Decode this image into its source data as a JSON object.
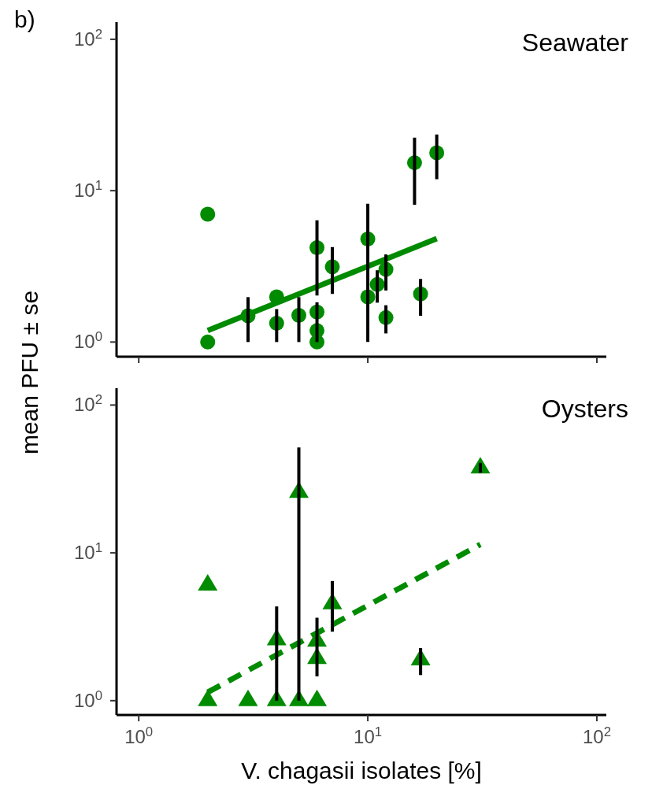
{
  "chart_data": [
    {
      "type": "scatter",
      "title": "Seawater",
      "annotations": [
        "b)"
      ],
      "ylabel": "mean PFU ± se",
      "log": "xy",
      "tick_labels": "y",
      "xlim": [
        0.8,
        110
      ],
      "ylim": [
        0.8,
        130
      ],
      "xticks": [
        {
          "value": 1,
          "label": null
        },
        {
          "value": 10,
          "label": null
        },
        {
          "value": 100,
          "label": null
        }
      ],
      "yticks": [
        {
          "value": 1,
          "label": "10$^{0}$"
        },
        {
          "value": 10,
          "label": "10$^{1}$"
        },
        {
          "value": 100,
          "label": "10$^{2}$"
        }
      ],
      "series": [
        {
          "color": "#008b00",
          "marker": "circle",
          "x": [
            2,
            2,
            3,
            4,
            4,
            5,
            6,
            6,
            6,
            6,
            7,
            10,
            10,
            11,
            12,
            12,
            16,
            20,
            17
          ],
          "values": [
            7.0,
            1.0,
            1.49,
            1.99,
            1.33,
            1.5,
            4.2,
            1.58,
            1.19,
            1.0,
            3.14,
            4.8,
            1.99,
            2.4,
            3.02,
            1.45,
            15.3,
            17.8,
            2.08
          ],
          "errors": [
            null,
            null,
            [
              1.0,
              1.98
            ],
            null,
            [
              1.0,
              1.65
            ],
            [
              1.0,
              1.98
            ],
            [
              2.03,
              6.37
            ],
            [
              1.0,
              1.83
            ],
            null,
            null,
            [
              2.08,
              4.24
            ],
            [
              1.0,
              8.2
            ],
            null,
            [
              1.82,
              2.98
            ],
            [
              2.19,
              3.79
            ],
            [
              1.14,
              1.75
            ],
            [
              8.06,
              22.4
            ],
            [
              11.9,
              23.5
            ],
            [
              1.49,
              2.61
            ]
          ]
        },
        {
          "type": "line",
          "line_style": "solid",
          "color": "#008b00",
          "x": [
            2,
            20
          ],
          "values": [
            1.19,
            4.82
          ]
        }
      ]
    },
    {
      "type": "scatter",
      "title": "Oysters",
      "xlabel": "V. chagasii isolates [%]",
      "log": "xy",
      "xlim": [
        0.8,
        110
      ],
      "ylim": [
        0.8,
        130
      ],
      "xticks": [
        {
          "value": 1,
          "label": "10$^{0}$"
        },
        {
          "value": 10,
          "label": "10$^{1}$"
        },
        {
          "value": 100,
          "label": "10$^{2}$"
        }
      ],
      "yticks": [
        {
          "value": 1,
          "label": "10$^{0}$"
        },
        {
          "value": 10,
          "label": "10$^{1}$"
        },
        {
          "value": 100,
          "label": "10$^{2}$"
        }
      ],
      "series": [
        {
          "color": "#008b00",
          "marker": "triangle",
          "x": [
            2,
            2,
            3,
            4,
            4,
            5,
            5,
            6,
            6,
            6,
            7,
            17,
            31
          ],
          "values": [
            1.0,
            6.05,
            1.0,
            1.0,
            2.58,
            1.0,
            25.7,
            1.0,
            1.93,
            2.53,
            4.53,
            1.89,
            37.6
          ],
          "errors": [
            null,
            null,
            null,
            null,
            [
              1.0,
              4.34
            ],
            null,
            [
              1.0,
              51.7
            ],
            null,
            null,
            [
              1.46,
              3.64
            ],
            [
              2.93,
              6.45
            ],
            [
              1.49,
              2.27
            ],
            [
              34.8,
              40.6
            ]
          ]
        },
        {
          "type": "line",
          "line_style": "dashed",
          "color": "#008b00",
          "x": [
            2,
            31
          ],
          "values": [
            1.14,
            11.4
          ]
        }
      ]
    }
  ]
}
